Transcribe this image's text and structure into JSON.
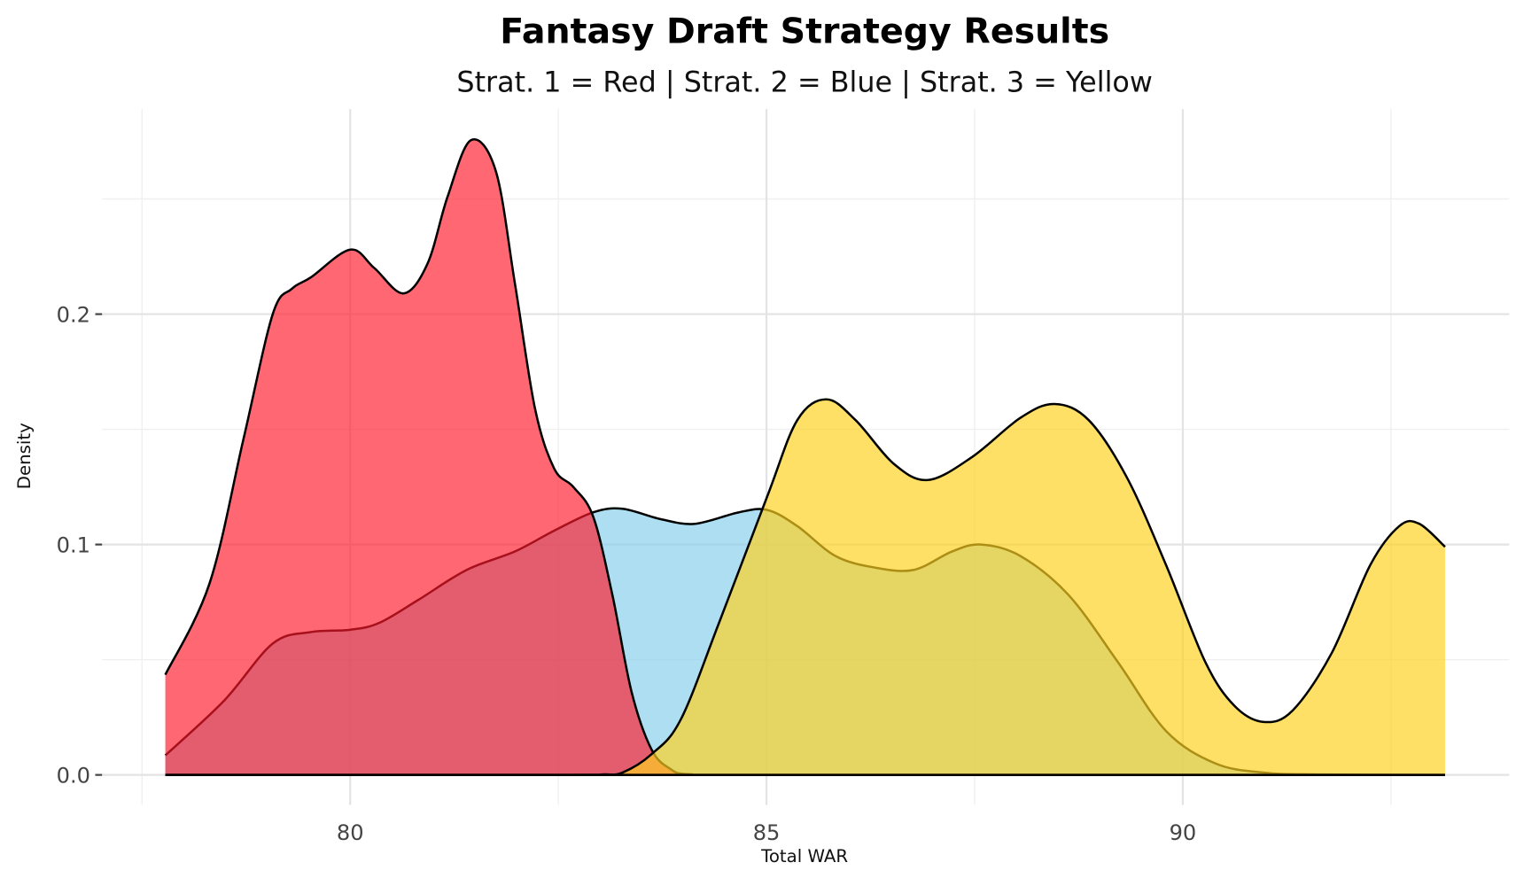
{
  "chart_data": {
    "type": "area",
    "title": "Fantasy Draft Strategy Results",
    "subtitle": "Strat. 1 = Red | Strat. 2 = Blue | Strat. 3 = Yellow",
    "xlabel": "Total WAR",
    "ylabel": "Density",
    "xlim": [
      77.02,
      93.92
    ],
    "ylim": [
      -0.013,
      0.289
    ],
    "xticks": [
      {
        "value": 80,
        "label": "80"
      },
      {
        "value": 85,
        "label": "85"
      },
      {
        "value": 90,
        "label": "90"
      }
    ],
    "yticks": [
      {
        "value": 0,
        "label": "0.0"
      },
      {
        "value": 0.1,
        "label": "0.1"
      },
      {
        "value": 0.2,
        "label": "0.2"
      }
    ],
    "grid": true,
    "legend": "none",
    "series": [
      {
        "name": "Strat. 2",
        "color": "#87ceeb",
        "opacity": 0.68,
        "line": "#000000",
        "x": [
          77.78,
          78.48,
          79.07,
          79.53,
          80.0,
          80.35,
          80.82,
          81.4,
          81.98,
          82.45,
          82.92,
          83.27,
          83.73,
          84.14,
          84.67,
          85.01,
          85.37,
          85.83,
          86.3,
          86.77,
          87.23,
          87.58,
          88.05,
          88.63,
          89.22,
          89.8,
          90.39,
          90.97,
          91.6,
          93.15
        ],
        "y": [
          0.0085,
          0.032,
          0.057,
          0.062,
          0.063,
          0.066,
          0.076,
          0.089,
          0.097,
          0.106,
          0.114,
          0.1155,
          0.111,
          0.109,
          0.114,
          0.115,
          0.108,
          0.095,
          0.09,
          0.089,
          0.097,
          0.1,
          0.095,
          0.078,
          0.049,
          0.019,
          0.005,
          0.001,
          0.0002,
          0
        ]
      },
      {
        "name": "Strat. 1",
        "color": "#ff1a2a",
        "opacity": 0.66,
        "line": "#000000",
        "x": [
          77.78,
          78.31,
          78.72,
          79.07,
          79.3,
          79.53,
          80.0,
          80.29,
          80.64,
          80.93,
          81.17,
          81.45,
          81.75,
          81.98,
          82.22,
          82.45,
          82.68,
          82.92,
          83.15,
          83.38,
          83.62,
          83.85,
          84.08,
          85.0,
          93.15
        ],
        "y": [
          0.0435,
          0.083,
          0.146,
          0.2,
          0.211,
          0.216,
          0.228,
          0.22,
          0.209,
          0.222,
          0.251,
          0.2755,
          0.262,
          0.213,
          0.159,
          0.133,
          0.125,
          0.112,
          0.078,
          0.036,
          0.011,
          0.0025,
          0.0003,
          0,
          0
        ]
      },
      {
        "name": "Strat. 3",
        "color": "#ffd21f",
        "opacity": 0.68,
        "line": "#000000",
        "x": [
          77.78,
          82.5,
          83.03,
          83.27,
          83.62,
          83.97,
          84.43,
          85.01,
          85.37,
          85.72,
          86.07,
          86.53,
          86.94,
          87.47,
          88.05,
          88.46,
          88.87,
          89.33,
          89.8,
          90.27,
          90.62,
          90.97,
          91.32,
          91.79,
          92.25,
          92.6,
          92.84,
          93.15
        ],
        "y": [
          0,
          0,
          0.0002,
          0.001,
          0.009,
          0.024,
          0.066,
          0.121,
          0.154,
          0.163,
          0.154,
          0.135,
          0.128,
          0.138,
          0.155,
          0.161,
          0.154,
          0.129,
          0.091,
          0.049,
          0.03,
          0.023,
          0.028,
          0.053,
          0.091,
          0.108,
          0.109,
          0.099
        ]
      }
    ]
  }
}
